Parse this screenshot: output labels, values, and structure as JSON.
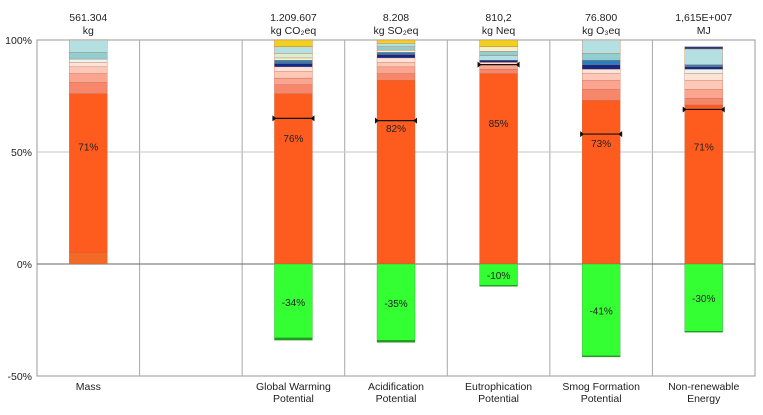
{
  "chart_data": {
    "type": "bar",
    "subtype": "stacked-100-percent",
    "title": "",
    "ylim": [
      -50,
      100
    ],
    "yticks": [
      "100%",
      "50%",
      "0%",
      "-50%"
    ],
    "grid": true,
    "categories": [
      {
        "label_lines": [
          "Mass"
        ],
        "header_value": "561.304",
        "header_unit": "kg",
        "main_label": "71%",
        "neg_label": "",
        "marker": null,
        "positive_segments": [
          {
            "color": "#f26a25",
            "value": 5
          },
          {
            "color": "#fe5b1e",
            "value": 71
          },
          {
            "color": "#f7876a",
            "value": 5
          },
          {
            "color": "#fba590",
            "value": 4
          },
          {
            "color": "#fdc8b8",
            "value": 3
          },
          {
            "color": "#ffe3d7",
            "value": 2
          },
          {
            "color": "#e7f4f1",
            "value": 1.5
          },
          {
            "color": "#8fcfd0",
            "value": 3
          },
          {
            "color": "#b5e0e2",
            "value": 5.5
          }
        ],
        "negative_segments": []
      },
      {
        "label_lines": [
          "Global Warming",
          "Potential"
        ],
        "header_value": "1.209.607",
        "header_unit": "kg CO₂eq",
        "main_label": "76%",
        "neg_label": "-34%",
        "marker": 65,
        "positive_segments": [
          {
            "color": "#fe5b1e",
            "value": 76
          },
          {
            "color": "#f7876a",
            "value": 4
          },
          {
            "color": "#fba590",
            "value": 3
          },
          {
            "color": "#fdc8b8",
            "value": 3
          },
          {
            "color": "#ffe3d7",
            "value": 2
          },
          {
            "color": "#0b2a8a",
            "value": 1.5
          },
          {
            "color": "#2a7fbf",
            "value": 1.5
          },
          {
            "color": "#f5f0c8",
            "value": 1
          },
          {
            "color": "#d8efd2",
            "value": 2
          },
          {
            "color": "#b5e0e2",
            "value": 3
          },
          {
            "color": "#f0d020",
            "value": 3
          }
        ],
        "negative_segments": [
          {
            "color": "#33ff33",
            "value": 33
          },
          {
            "color": "#1aa01a",
            "value": 1
          }
        ]
      },
      {
        "label_lines": [
          "Acidification",
          "Potential"
        ],
        "header_value": "8.208",
        "header_unit": "kg SO₂eq",
        "main_label": "82%",
        "neg_label": "-35%",
        "marker": 64,
        "positive_segments": [
          {
            "color": "#fe5b1e",
            "value": 82
          },
          {
            "color": "#f7876a",
            "value": 3
          },
          {
            "color": "#fba590",
            "value": 3
          },
          {
            "color": "#fdc8b8",
            "value": 2
          },
          {
            "color": "#ffe3d7",
            "value": 2
          },
          {
            "color": "#0b2a8a",
            "value": 1.5
          },
          {
            "color": "#2a7fbf",
            "value": 1
          },
          {
            "color": "#f5f0c8",
            "value": 1
          },
          {
            "color": "#8fcfd0",
            "value": 1.5
          },
          {
            "color": "#b5e0e2",
            "value": 1.5
          },
          {
            "color": "#f0d020",
            "value": 1.5
          }
        ],
        "negative_segments": [
          {
            "color": "#33ff33",
            "value": 34
          },
          {
            "color": "#1aa01a",
            "value": 1
          }
        ]
      },
      {
        "label_lines": [
          "Eutrophication",
          "Potential"
        ],
        "header_value": "810,2",
        "header_unit": "kg Neq",
        "main_label": "85%",
        "neg_label": "-10%",
        "marker": 89,
        "positive_segments": [
          {
            "color": "#fe5b1e",
            "value": 85
          },
          {
            "color": "#f7876a",
            "value": 2
          },
          {
            "color": "#fba590",
            "value": 2
          },
          {
            "color": "#ffe3d7",
            "value": 1
          },
          {
            "color": "#0b2a8a",
            "value": 1
          },
          {
            "color": "#b5e0e2",
            "value": 2
          },
          {
            "color": "#8fcfd0",
            "value": 2
          },
          {
            "color": "#f5f0c8",
            "value": 2
          },
          {
            "color": "#f0d020",
            "value": 3
          }
        ],
        "negative_segments": [
          {
            "color": "#33ff33",
            "value": 9.5
          },
          {
            "color": "#1aa01a",
            "value": 0.5
          }
        ]
      },
      {
        "label_lines": [
          "Smog Formation",
          "Potential"
        ],
        "header_value": "76.800",
        "header_unit": "kg O₃eq",
        "main_label": "73%",
        "neg_label": "-41%",
        "marker": 58,
        "positive_segments": [
          {
            "color": "#fe5b1e",
            "value": 73
          },
          {
            "color": "#f7876a",
            "value": 5
          },
          {
            "color": "#fba590",
            "value": 4
          },
          {
            "color": "#fdc8b8",
            "value": 3
          },
          {
            "color": "#ffe3d7",
            "value": 2
          },
          {
            "color": "#0b2a8a",
            "value": 2
          },
          {
            "color": "#2a7fbf",
            "value": 2
          },
          {
            "color": "#8fcfd0",
            "value": 3
          },
          {
            "color": "#b5e0e2",
            "value": 6
          }
        ],
        "negative_segments": [
          {
            "color": "#33ff33",
            "value": 41
          },
          {
            "color": "#1aa01a",
            "value": 0.5
          }
        ]
      },
      {
        "label_lines": [
          "Non-renewable",
          "Energy"
        ],
        "header_value": "1,615E+007",
        "header_unit": "MJ",
        "main_label": "71%",
        "neg_label": "-30%",
        "marker": 69,
        "positive_segments": [
          {
            "color": "#fe5b1e",
            "value": 71
          },
          {
            "color": "#f7876a",
            "value": 3
          },
          {
            "color": "#fba590",
            "value": 4
          },
          {
            "color": "#fdc8b8",
            "value": 4
          },
          {
            "color": "#ffe3d7",
            "value": 3
          },
          {
            "color": "#e7f4f1",
            "value": 2
          },
          {
            "color": "#0b2a8a",
            "value": 1
          },
          {
            "color": "#2a7fbf",
            "value": 1
          },
          {
            "color": "#b5e0e2",
            "value": 7
          },
          {
            "color": "#233a88",
            "value": 1
          }
        ],
        "negative_segments": [
          {
            "color": "#33ff33",
            "value": 30
          },
          {
            "color": "#1aa01a",
            "value": 0.5
          }
        ]
      }
    ]
  }
}
